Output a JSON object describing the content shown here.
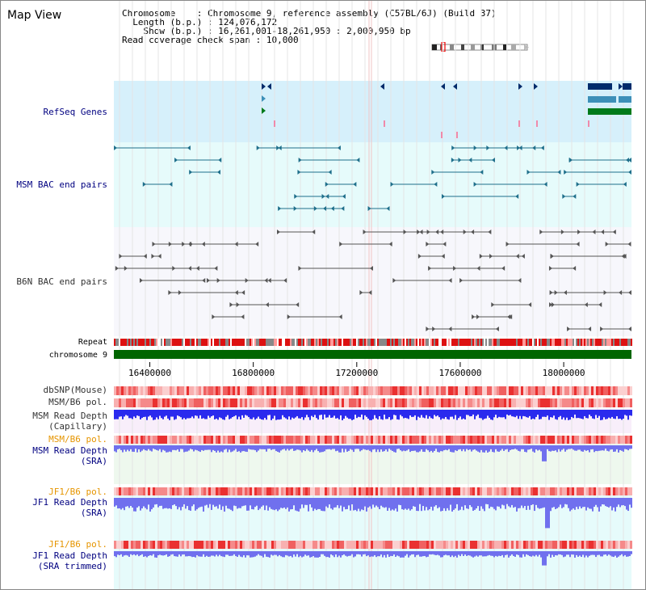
{
  "title": "Map View",
  "info": {
    "chromosome_key": "Chromosome",
    "chromosome_val": "Chromosome 9, reference assembly (C57BL/6J) (Build 37)",
    "length_key": "Length (b.p.)",
    "length_val": "124,076,172",
    "show_key": "Show (b.p.)",
    "show_val": "16,261,001-18,261,950 : 2,000,950 bp",
    "coverage_key": "Read coverage check span",
    "coverage_val": "10,000"
  },
  "tracks": {
    "refseq": "RefSeq Genes",
    "msm_bac": "MSM BAC end pairs",
    "b6n_bac": "B6N BAC end pairs",
    "repeat": "Repeat",
    "chromosome": "chromosome 9",
    "dbsnp": "dbSNP(Mouse)",
    "msm_b6_pol": "MSM/B6 pol.",
    "msm_depth_cap_1": "MSM Read Depth",
    "msm_depth_cap_2": "(Capillary)",
    "msm_b6_pol_sra": "MSM/B6 pol.",
    "msm_depth_sra_1": "MSM Read Depth",
    "msm_depth_sra_2": "(SRA)",
    "jf1_b6_pol": "JF1/B6 pol.",
    "jf1_depth_1": "JF1 Read Depth",
    "jf1_depth_2": "(SRA)",
    "jf1_b6_pol_trim": "JF1/B6 pol.",
    "jf1_trim_1": "JF1 Read Depth",
    "jf1_trim_2": "(SRA trimmed)"
  },
  "axis": {
    "ticks": [
      "16400000",
      "16800000",
      "17200000",
      "17600000",
      "18000000"
    ]
  },
  "colors": {
    "refseq_bg": "#d6f0fb",
    "bac_bg": "#e6fbfb",
    "gene_dark": "#002b6b",
    "gene_mid": "#3d8fb8",
    "gene_green": "#007a1a",
    "msm_pair": "#1f6f8b",
    "b6n_pair": "#555555",
    "chromosome_bar": "#006600",
    "repeat": "#dd1111",
    "depth_blue": "#2a2aee",
    "depth_light": "#7070ee"
  }
}
